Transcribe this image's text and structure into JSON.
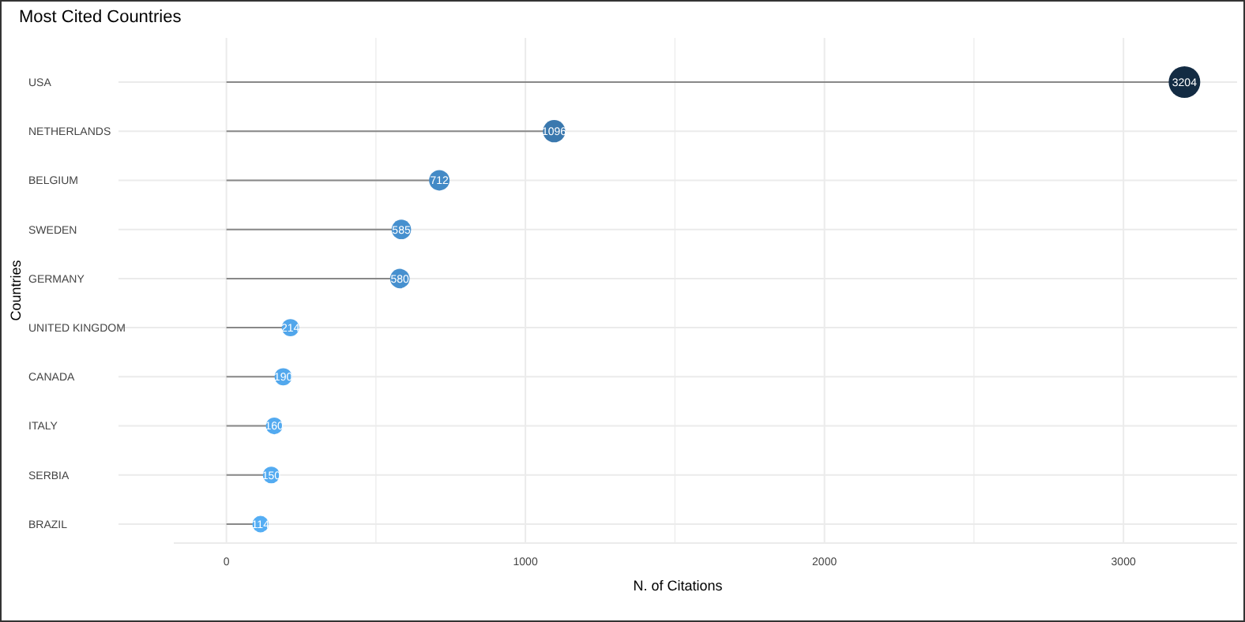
{
  "chart_data": {
    "type": "lollipop",
    "title": "Most Cited Countries",
    "xlabel": "N. of Citations",
    "ylabel": "Countries",
    "orientation": "horizontal",
    "categories": [
      "USA",
      "NETHERLANDS",
      "BELGIUM",
      "SWEDEN",
      "GERMANY",
      "UNITED KINGDOM",
      "CANADA",
      "ITALY",
      "SERBIA",
      "BRAZIL"
    ],
    "values": [
      3204,
      1096,
      712,
      585,
      580,
      214,
      190,
      160,
      150,
      114
    ],
    "colors": [
      "#132b43",
      "#3a78ae",
      "#438ac6",
      "#4690cf",
      "#4690cf",
      "#51a6eb",
      "#52a8ed",
      "#53aaf0",
      "#53abf1",
      "#55aef4"
    ],
    "sizes": [
      1,
      0.5,
      0.42,
      0.38,
      0.38,
      0.3,
      0.3,
      0.28,
      0.28,
      0.27
    ],
    "data_labels": true,
    "grid": true,
    "xlim": [
      -176,
      3380
    ],
    "xticks": [
      0,
      {
        "value": 500,
        "label": null
      },
      1000,
      {
        "value": 1500,
        "label": null
      },
      2000,
      {
        "value": 2500,
        "label": null
      },
      3000
    ]
  }
}
